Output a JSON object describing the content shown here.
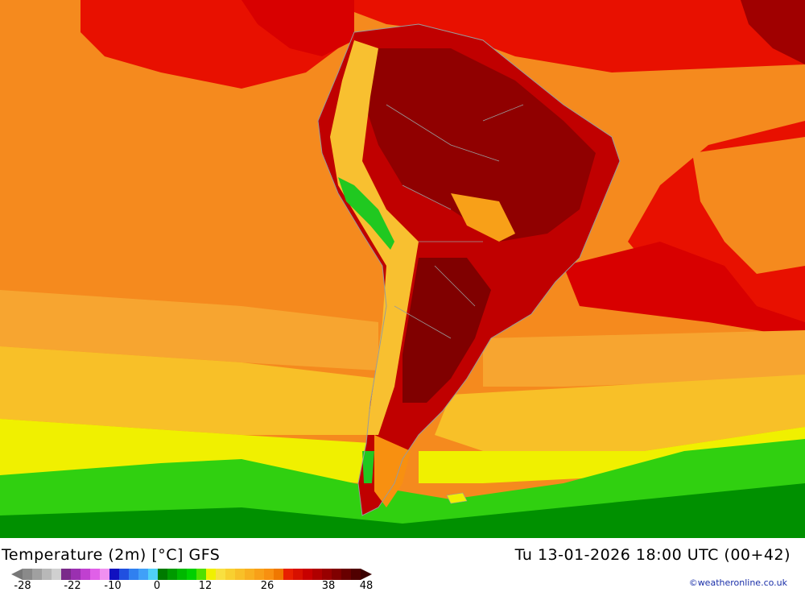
{
  "footer": {
    "title": "Temperature (2m) [°C] GFS",
    "timestamp": "Tu 13-01-2026 18:00 UTC (00+42)",
    "credit": "©weatheronline.co.uk"
  },
  "legend": {
    "ticks": [
      "-28",
      "-22",
      "-10",
      "0",
      "12",
      "26",
      "38",
      "48"
    ],
    "colors": [
      "#8a8a8a",
      "#a0a0a0",
      "#b8b8b8",
      "#d0d0d0",
      "#7a2a8a",
      "#9a30b0",
      "#c040d0",
      "#e060e8",
      "#f090f0",
      "#1010c0",
      "#2050e0",
      "#3080f0",
      "#40a0f8",
      "#50d0f8",
      "#007a00",
      "#009a00",
      "#00b800",
      "#00d000",
      "#50e000",
      "#f0f000",
      "#f8e040",
      "#f8d030",
      "#f8c028",
      "#f8b020",
      "#f8a018",
      "#f89010",
      "#f07800",
      "#e82000",
      "#d81000",
      "#c80000",
      "#b00000",
      "#980000",
      "#800000",
      "#680000",
      "#500000"
    ],
    "arrow_left_color": "#777777",
    "arrow_right_color": "#3c0000"
  },
  "map": {
    "field_colors": {
      "ocean_warm": "#f58a1e",
      "ocean_mid": "#f7a530",
      "ocean_cool": "#f8d040",
      "ocean_yellow": "#f0f000",
      "ocean_green": "#30d010",
      "ocean_dark_green": "#009000",
      "land_hot": "#c00000",
      "land_very_hot": "#800000",
      "tropical_red": "#e80000",
      "andes_cool": "#f8c030",
      "andes_green": "#20c820",
      "border_gray": "#9a9a9a"
    }
  }
}
